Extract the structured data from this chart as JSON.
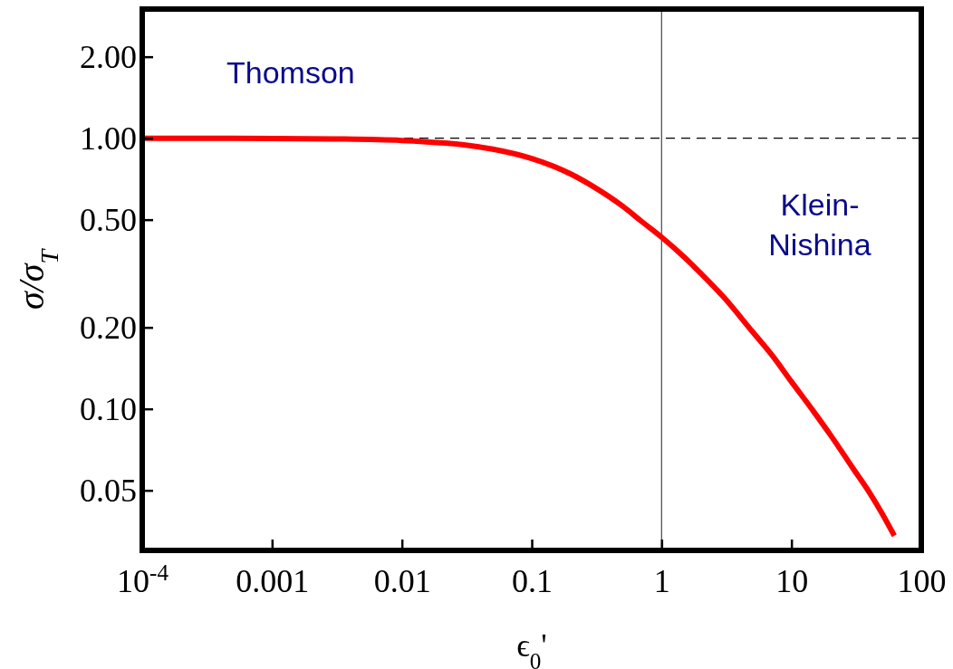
{
  "chart_data": {
    "type": "line",
    "xlabel": "ϵ$_{0}$'",
    "ylabel": "σ/σ$_{T}$",
    "log": "xy",
    "x": [
      0.0001,
      0.0003,
      0.001,
      0.003,
      0.01,
      0.02,
      0.03,
      0.05,
      0.1,
      0.2,
      0.3,
      0.5,
      0.7,
      1,
      1.5,
      2,
      3,
      5,
      7,
      10,
      15,
      20,
      30,
      40,
      50,
      62
    ],
    "series": [
      {
        "color": "#ff0000",
        "values": [
          1.0,
          0.999,
          0.998,
          0.994,
          0.981,
          0.962,
          0.945,
          0.911,
          0.841,
          0.737,
          0.661,
          0.561,
          0.493,
          0.431,
          0.363,
          0.317,
          0.259,
          0.193,
          0.159,
          0.126,
          0.097,
          0.08,
          0.06,
          0.049,
          0.041,
          0.034
        ]
      }
    ],
    "xlim": [
      0.0001,
      100
    ],
    "ylim": [
      0.03,
      3
    ],
    "xticks": [
      {
        "value": 0.0001,
        "label": "10$^{-4}$"
      },
      {
        "value": 0.001,
        "label": "0.001"
      },
      {
        "value": 0.01,
        "label": "0.01"
      },
      {
        "value": 0.1,
        "label": "0.1"
      },
      {
        "value": 1,
        "label": "1"
      },
      {
        "value": 10,
        "label": "10"
      },
      {
        "value": 100,
        "label": "100"
      }
    ],
    "yticks": [
      {
        "value": 0.05,
        "label": "0.05"
      },
      {
        "value": 0.1,
        "label": "0.10"
      },
      {
        "value": 0.2,
        "label": "0.20"
      },
      {
        "value": 0.5,
        "label": "0.50"
      },
      {
        "value": 1,
        "label": "1.00"
      },
      {
        "value": 2,
        "label": "2.00"
      }
    ],
    "ref_lines": [
      {
        "axis": "y",
        "value": 1,
        "color": "#000000",
        "line_style": "dashed"
      },
      {
        "axis": "x",
        "value": 1,
        "color": "#555555",
        "line_style": "solid"
      }
    ],
    "annotations": [
      "Thomson",
      "Klein-\nNishina"
    ],
    "marker": "none",
    "line_style": "solid"
  }
}
